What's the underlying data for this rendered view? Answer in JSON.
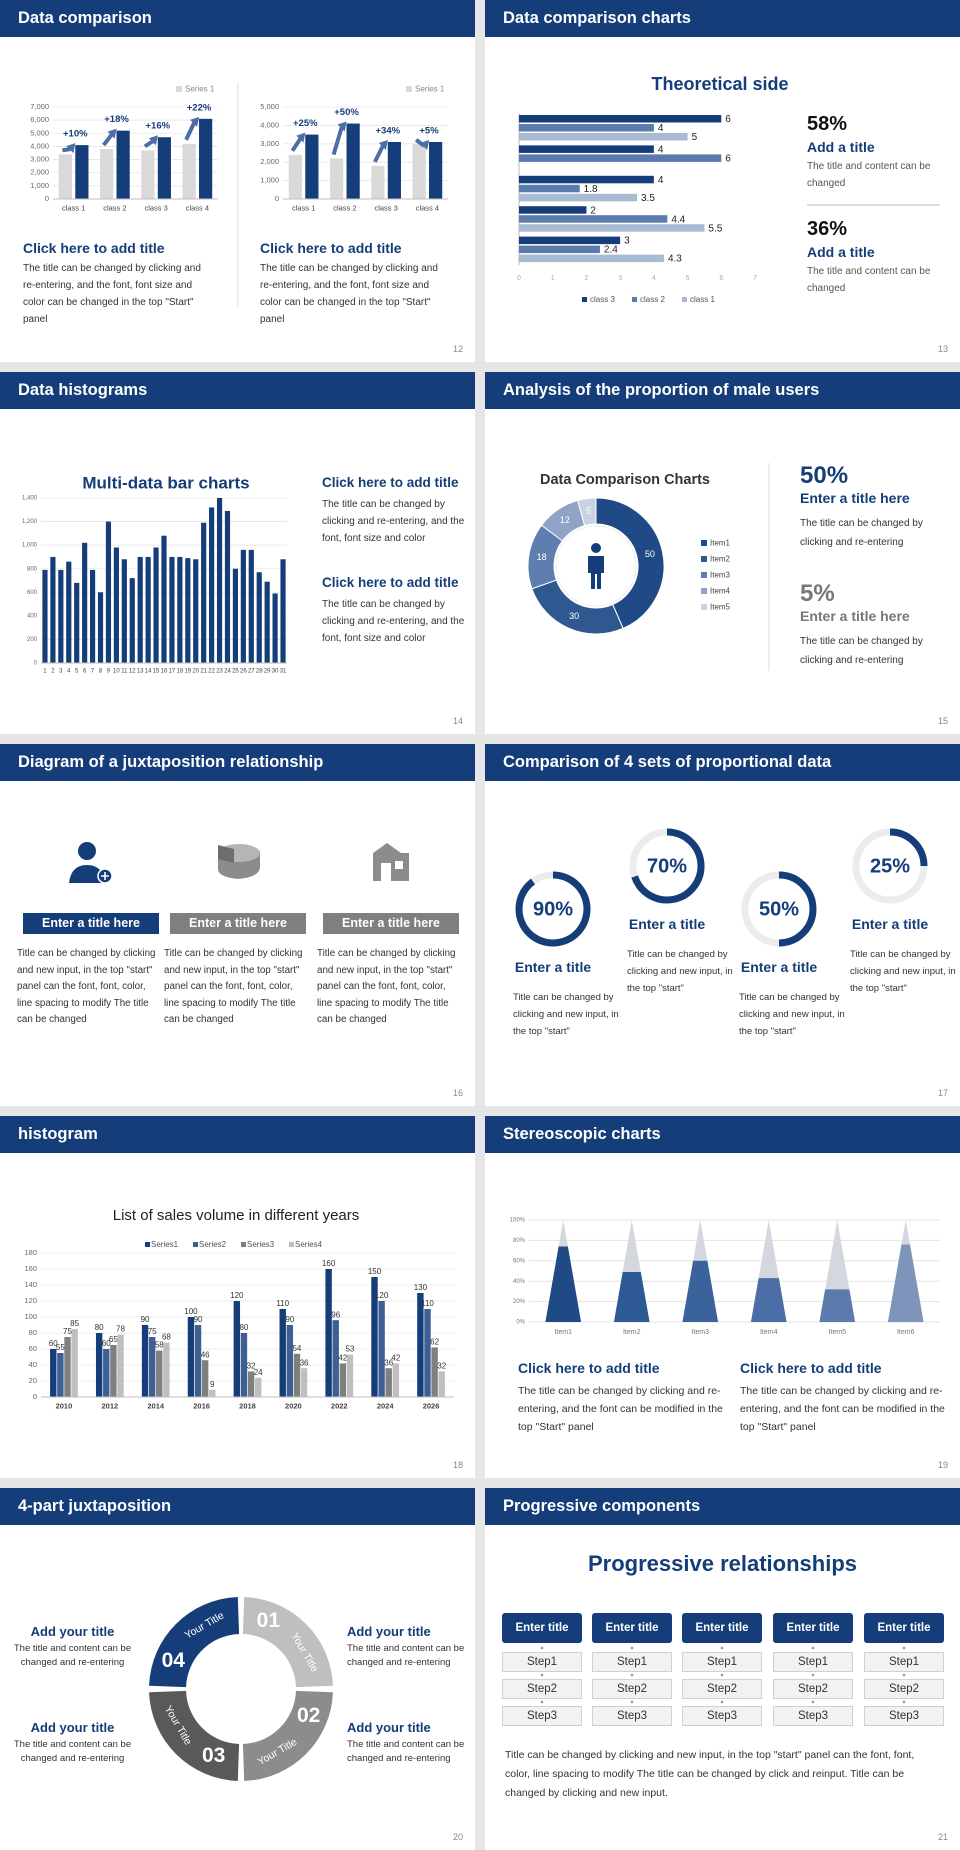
{
  "slides": [
    {
      "title": "Data comparison",
      "page": "12",
      "charts": [
        {
          "type": "bar",
          "ylim": [
            0,
            7000
          ],
          "yticks": [
            0,
            {
              "value": 1000,
              "label": "1,000"
            },
            {
              "value": 2000,
              "label": "2,000"
            },
            {
              "value": 3000,
              "label": "3,000"
            },
            {
              "value": 4000,
              "label": "4,000"
            },
            {
              "value": 5000,
              "label": "5,000"
            },
            {
              "value": 6000,
              "label": "6,000"
            },
            {
              "value": 7000,
              "label": "7,000"
            }
          ],
          "categories": [
            "class 1",
            "class 2",
            "class 3",
            "class 4"
          ],
          "series": [
            {
              "name": "Series 1",
              "color": "#d9d9d9",
              "values": [
                3400,
                3800,
                3700,
                4200
              ]
            },
            {
              "color": "#143d79",
              "values": [
                4100,
                5200,
                4700,
                6100
              ]
            }
          ],
          "annotations": [
            "+10%",
            "+18%",
            "+16%",
            "+22%"
          ]
        },
        {
          "type": "bar",
          "ylim": [
            0,
            5000
          ],
          "yticks": [
            0,
            {
              "value": 1000,
              "label": "1,000"
            },
            {
              "value": 2000,
              "label": "2,000"
            },
            {
              "value": 3000,
              "label": "3,000"
            },
            {
              "value": 4000,
              "label": "4,000"
            },
            {
              "value": 5000,
              "label": "5,000"
            }
          ],
          "categories": [
            "class 1",
            "class 2",
            "class 3",
            "class 4"
          ],
          "series": [
            {
              "name": "Series 1",
              "color": "#d9d9d9",
              "values": [
                2400,
                2200,
                1800,
                3000
              ]
            },
            {
              "color": "#143d79",
              "values": [
                3500,
                4100,
                3100,
                3100
              ]
            }
          ],
          "annotations": [
            "+25%",
            "+50%",
            "+34%",
            "+5%"
          ]
        }
      ],
      "blocks": [
        {
          "heading": "Click here to add title",
          "text": "The title can be changed by clicking and re-entering, and the font, font size and color can be changed in the top \"Start\" panel"
        },
        {
          "heading": "Click here to add title",
          "text": "The title can be changed by clicking and re-entering, and the font, font size and color can be changed in the top \"Start\" panel"
        }
      ]
    },
    {
      "title": "Data comparison charts",
      "page": "13",
      "chart": {
        "type": "hbar",
        "title": "Theoretical side",
        "xlim": [
          0,
          7
        ],
        "xticks": [
          0,
          1,
          2,
          3,
          4,
          5,
          6,
          7
        ],
        "data_labels": true,
        "series": [
          {
            "name": "class 3",
            "color": "#143d79",
            "values": [
              6,
              4,
              4,
              2,
              3
            ]
          },
          {
            "name": "class 2",
            "color": "#5a7bab",
            "values": [
              4,
              6,
              1.8,
              4.4,
              2.4
            ]
          },
          {
            "name": "class 1",
            "color": "#a9bad3",
            "values": [
              5,
              null,
              3.5,
              5.5,
              4.3
            ]
          }
        ]
      },
      "stats": [
        {
          "value": "58%",
          "heading": "Add a title",
          "text": "The title and content can be changed"
        },
        {
          "value": "36%",
          "heading": "Add a title",
          "text": "The title and content can be changed"
        }
      ]
    },
    {
      "title": "Data histograms",
      "page": "14",
      "chart": {
        "type": "bar",
        "title": "Multi-data bar charts",
        "ylim": [
          0,
          1400
        ],
        "yticks": [
          0,
          200,
          400,
          600,
          800,
          {
            "value": 1000,
            "label": "1,000"
          },
          {
            "value": 1200,
            "label": "1,200"
          },
          {
            "value": 1400,
            "label": "1,400"
          }
        ],
        "categories": [
          "1",
          "2",
          "3",
          "4",
          "5",
          "6",
          "7",
          "8",
          "9",
          "10",
          "11",
          "12",
          "13",
          "14",
          "15",
          "16",
          "17",
          "18",
          "19",
          "20",
          "21",
          "22",
          "23",
          "24",
          "25",
          "26",
          "27",
          "28",
          "29",
          "30",
          "31"
        ],
        "series": [
          {
            "color": "#143d79",
            "values": [
              790,
              900,
              790,
              860,
              680,
              1020,
              790,
              600,
              1200,
              980,
              880,
              720,
              900,
              900,
              980,
              1080,
              900,
              900,
              890,
              880,
              1190,
              1320,
              1400,
              1290,
              800,
              960,
              960,
              770,
              690,
              590,
              880
            ]
          }
        ]
      },
      "blocks": [
        {
          "heading": "Click here to add title",
          "text": "The title can be changed by clicking and re-entering, and the font, font size and color"
        },
        {
          "heading": "Click here to add title",
          "text": "The title can be changed by clicking and re-entering, and the font, font size and color"
        }
      ]
    },
    {
      "title": "Analysis of the proportion of male users",
      "page": "15",
      "chart": {
        "type": "donut",
        "title": "Data Comparison Charts",
        "categories": [
          "Item1",
          "Item2",
          "Item3",
          "Item4",
          "Item5"
        ],
        "values": [
          50,
          30,
          18,
          12,
          5
        ],
        "colors": [
          "#1f4a86",
          "#2f5891",
          "#5d7eae",
          "#8ea3c5",
          "#c9d2e3"
        ]
      },
      "stats": [
        {
          "value": "50%",
          "heading": "Enter a title here",
          "text": "The title can be changed by clicking and re-entering"
        },
        {
          "value": "5%",
          "heading": "Enter a title here",
          "text": "The title can be changed by clicking and re-entering"
        }
      ]
    },
    {
      "title": "Diagram of a juxtaposition relationship",
      "page": "16",
      "columns": [
        {
          "heading": "Enter a title here",
          "text": "Title can be changed by clicking and new input, in the top \"start\" panel can the font, font, color, line spacing to modify The title can be changed"
        },
        {
          "heading": "Enter a title here",
          "text": "Title can be changed by clicking and new input, in the top \"start\" panel can the font, font, color, line spacing to modify The title can be changed"
        },
        {
          "heading": "Enter a title here",
          "text": "Title can be changed by clicking and new input, in the top \"start\" panel can the font, font, color, line spacing to modify The title can be changed"
        }
      ]
    },
    {
      "title": "Comparison of 4 sets of proportional data",
      "page": "17",
      "chart": {
        "type": "ring",
        "ylim": [
          0,
          100
        ],
        "values": [
          90,
          70,
          50,
          25
        ],
        "value_labels": [
          "90%",
          "70%",
          "50%",
          "25%"
        ],
        "color": "#143d79",
        "track": "#ececec"
      },
      "columns": [
        {
          "heading": "Enter a title",
          "text": "Title can be changed by clicking and new input, in the top \"start\""
        },
        {
          "heading": "Enter a title",
          "text": "Title can be changed by clicking and new input, in the top \"start\""
        },
        {
          "heading": "Enter a title",
          "text": "Title can be changed by clicking and new input, in the top \"start\""
        },
        {
          "heading": "Enter a title",
          "text": "Title can be changed by clicking and new input, in the top \"start\""
        }
      ]
    },
    {
      "title": "histogram",
      "page": "18",
      "chart": {
        "type": "bar",
        "title": "List of sales volume in different years",
        "ylim": [
          0,
          180
        ],
        "yticks": [
          0,
          20,
          40,
          60,
          80,
          100,
          120,
          140,
          160,
          180
        ],
        "data_labels": true,
        "categories": [
          "2010",
          "2012",
          "2014",
          "2016",
          "2018",
          "2020",
          "2022",
          "2024",
          "2026"
        ],
        "series": [
          {
            "name": "Series1",
            "color": "#143d79",
            "values": [
              60,
              80,
              90,
              100,
              120,
              110,
              160,
              150,
              130
            ]
          },
          {
            "name": "Series2",
            "color": "#3d5f93",
            "values": [
              55,
              60,
              75,
              90,
              80,
              90,
              96,
              120,
              110
            ]
          },
          {
            "name": "Series3",
            "color": "#7f7f7f",
            "values": [
              75,
              65,
              58,
              46,
              32,
              54,
              42,
              36,
              62
            ]
          },
          {
            "name": "Series4",
            "color": "#bfbfbf",
            "values": [
              85,
              78,
              68,
              9,
              24,
              36,
              53,
              42,
              32
            ]
          }
        ]
      }
    },
    {
      "title": "Stereoscopic charts",
      "page": "19",
      "chart": {
        "type": "cone",
        "categories": [
          "Item1",
          "Item2",
          "Item3",
          "Item4",
          "Item5",
          "Item6"
        ],
        "values": [
          74,
          49,
          60,
          43,
          32,
          76
        ],
        "colors": [
          "#1f4a86",
          "#2d5a95",
          "#3a639c",
          "#4a6ea5",
          "#5a7bac",
          "#7e94bb"
        ],
        "ylim": [
          0,
          100
        ],
        "yticks": [
          {
            "value": 0,
            "label": "0%"
          },
          {
            "value": 20,
            "label": "20%"
          },
          {
            "value": 40,
            "label": "40%"
          },
          {
            "value": 60,
            "label": "60%"
          },
          {
            "value": 80,
            "label": "80%"
          },
          {
            "value": 100,
            "label": "100%"
          }
        ]
      },
      "blocks": [
        {
          "heading": "Click here to add title",
          "text": "The title can be changed by clicking and re-entering, and the font can be modified in the top \"Start\" panel"
        },
        {
          "heading": "Click here to add title",
          "text": "The title can be changed by clicking and re-entering, and the font can be modified in the top \"Start\" panel"
        }
      ]
    },
    {
      "title": "4-part juxtaposition",
      "page": "20",
      "segments": [
        {
          "number": "01",
          "label": "Your Title",
          "color": "#bfbfbf"
        },
        {
          "number": "02",
          "label": "Your Title",
          "color": "#8c8c8c"
        },
        {
          "number": "03",
          "label": "Your Title",
          "color": "#595959"
        },
        {
          "number": "04",
          "label": "Your Title",
          "color": "#143d79"
        }
      ],
      "items": [
        {
          "heading": "Add your title",
          "text": "The title and content can be changed and re-entering"
        },
        {
          "heading": "Add your title",
          "text": "The title and content can be changed and re-entering"
        },
        {
          "heading": "Add your title",
          "text": "The title and content can be changed and re-entering"
        },
        {
          "heading": "Add your title",
          "text": "The title and content can be changed and re-entering"
        }
      ]
    },
    {
      "title": "Progressive components",
      "page": "21",
      "heading": "Progressive relationships",
      "columns": [
        {
          "title": "Enter title",
          "steps": [
            "Step1",
            "Step2",
            "Step3"
          ]
        },
        {
          "title": "Enter title",
          "steps": [
            "Step1",
            "Step2",
            "Step3"
          ]
        },
        {
          "title": "Enter title",
          "steps": [
            "Step1",
            "Step2",
            "Step3"
          ]
        },
        {
          "title": "Enter title",
          "steps": [
            "Step1",
            "Step2",
            "Step3"
          ]
        },
        {
          "title": "Enter title",
          "steps": [
            "Step1",
            "Step2",
            "Step3"
          ]
        }
      ],
      "text": "Title can be changed by clicking and new input, in the top \"start\" panel can the font, font, color, line spacing to modify The title can be changed by click and reinput. Title can be changed by clicking and new input."
    }
  ]
}
